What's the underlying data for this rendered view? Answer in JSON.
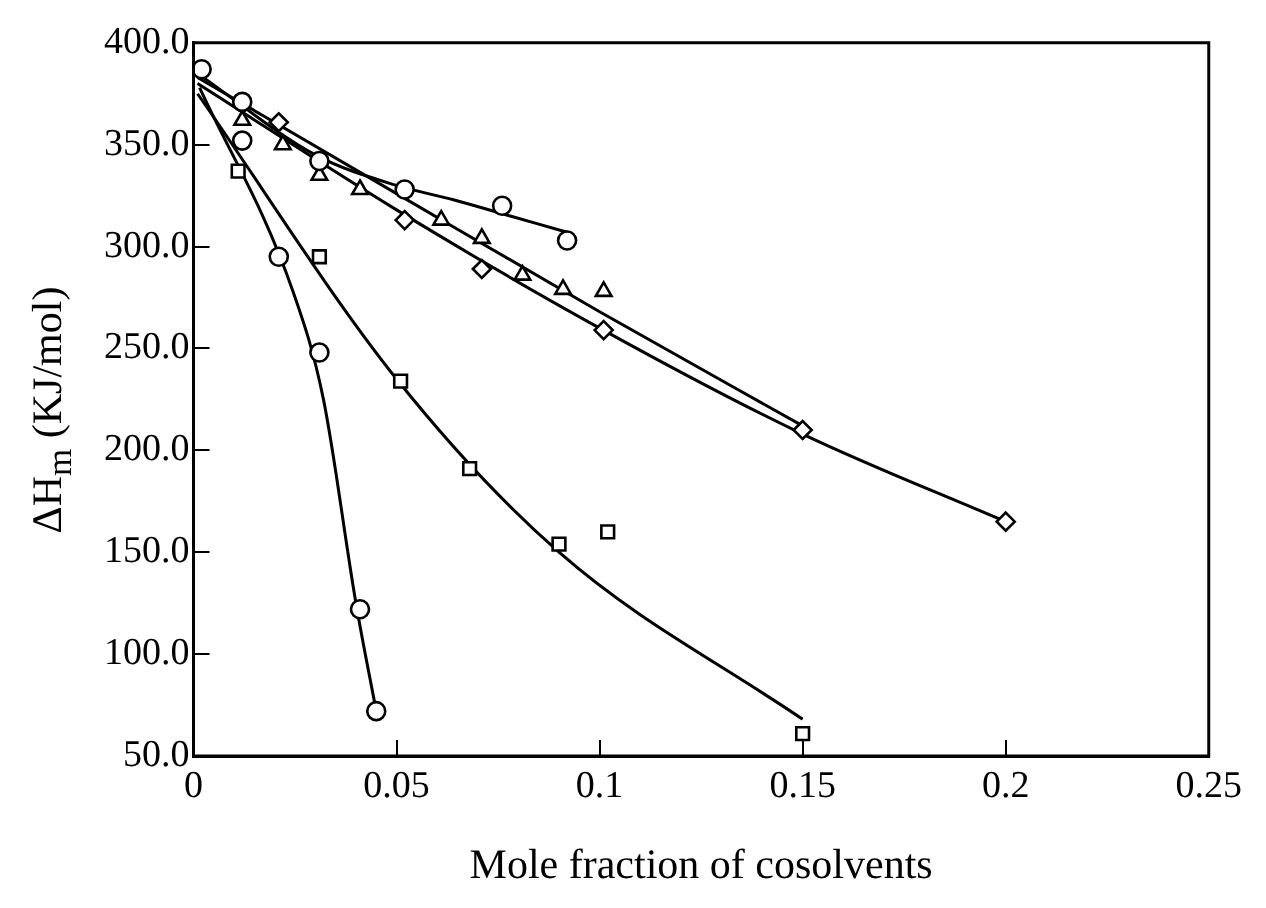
{
  "chart_data": {
    "type": "scatter",
    "xlabel": "Mole fraction of cosolvents",
    "ylabel": "ΔH$_{m}$ (KJ/mol)",
    "xlim": [
      0,
      0.25
    ],
    "xticks": [
      0,
      0.05,
      0.1,
      0.15,
      0.2,
      0.25
    ],
    "ylim": [
      50,
      400
    ],
    "yticks": [
      {
        "value": 50,
        "label": "50.0"
      },
      {
        "value": 100,
        "label": "100.0"
      },
      {
        "value": 150,
        "label": "150.0"
      },
      {
        "value": 200,
        "label": "200.0"
      },
      {
        "value": 250,
        "label": "250.0"
      },
      {
        "value": 300,
        "label": "300.0"
      },
      {
        "value": 350,
        "label": "350.0"
      },
      {
        "value": 400,
        "label": "400.0"
      }
    ],
    "grid": false,
    "legend": false,
    "series": [
      {
        "marker": "circle",
        "color": "#000000",
        "x": [
          0.002,
          0.012,
          0.031,
          0.052,
          0.076,
          0.092
        ],
        "values": [
          387,
          371,
          342,
          328,
          320,
          303
        ]
      },
      {
        "marker": "triangle",
        "color": "#000000",
        "x": [
          0.012,
          0.022,
          0.031,
          0.041,
          0.061,
          0.071,
          0.081,
          0.091,
          0.101
        ],
        "values": [
          362,
          350,
          335,
          328,
          313,
          304,
          286,
          279,
          278
        ]
      },
      {
        "marker": "diamond",
        "color": "#000000",
        "x": [
          0.021,
          0.052,
          0.071,
          0.101,
          0.15,
          0.2
        ],
        "values": [
          361,
          313,
          289,
          259,
          210,
          165
        ]
      },
      {
        "marker": "circle",
        "color": "#000000",
        "x": [
          0.012,
          0.021,
          0.031,
          0.041,
          0.045
        ],
        "values": [
          352,
          295,
          248,
          122,
          72
        ]
      },
      {
        "marker": "square",
        "color": "#000000",
        "x": [
          0.011,
          0.031,
          0.051,
          0.068,
          0.09,
          0.102,
          0.15
        ],
        "values": [
          337,
          295,
          234,
          191,
          154,
          160,
          61
        ]
      },
      {
        "type": "line",
        "marker": "none",
        "color": "#000000",
        "x": [
          0.001,
          0.03,
          0.05,
          0.064,
          0.078,
          0.092
        ],
        "values": [
          385,
          345,
          330,
          323,
          315,
          307
        ]
      },
      {
        "type": "line",
        "marker": "none",
        "color": "#000000",
        "x": [
          0.001,
          0.05,
          0.1,
          0.15
        ],
        "values": [
          383,
          326,
          268,
          212
        ]
      },
      {
        "type": "line",
        "marker": "none",
        "color": "#000000",
        "x": [
          0.001,
          0.05,
          0.1,
          0.15,
          0.2
        ],
        "values": [
          380,
          318,
          260,
          208,
          165
        ]
      },
      {
        "type": "line",
        "marker": "none",
        "color": "#000000",
        "x": [
          0.0015,
          0.0245,
          0.032,
          0.04,
          0.045
        ],
        "values": [
          378,
          278,
          225,
          125,
          72
        ]
      },
      {
        "type": "line",
        "marker": "none",
        "color": "#000000",
        "x": [
          0.001,
          0.05,
          0.09,
          0.15
        ],
        "values": [
          375,
          235,
          150,
          68
        ]
      }
    ]
  }
}
